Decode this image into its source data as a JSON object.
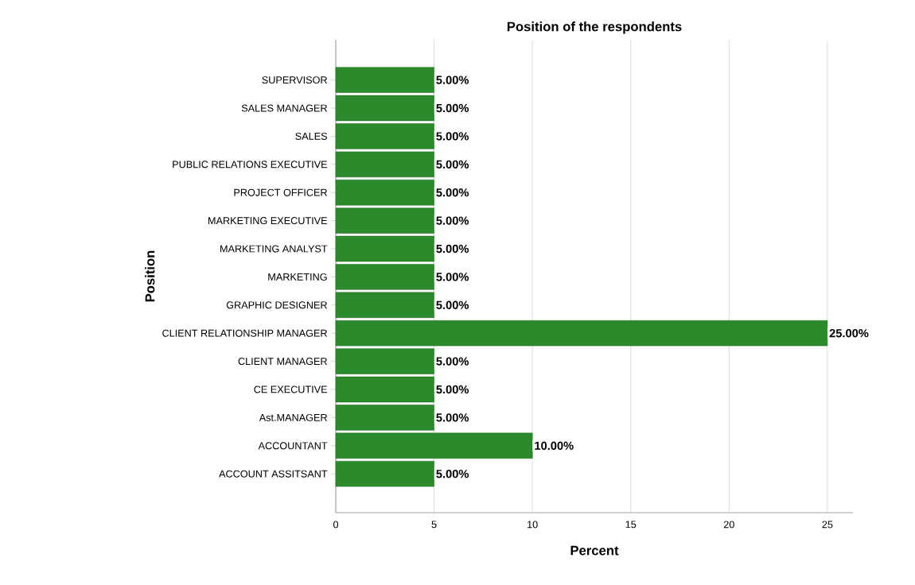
{
  "chart_data": {
    "type": "bar",
    "orientation": "horizontal",
    "title": "Position of the respondents",
    "xlabel": "Percent",
    "ylabel": "Position",
    "categories": [
      "SUPERVISOR",
      "SALES MANAGER",
      "SALES",
      "PUBLIC RELATIONS EXECUTIVE",
      "PROJECT OFFICER",
      "MARKETING EXECUTIVE",
      "MARKETING ANALYST",
      "MARKETING",
      "GRAPHIC DESIGNER",
      "CLIENT RELATIONSHIP MANAGER",
      "CLIENT MANAGER",
      "CE EXECUTIVE",
      "Ast.MANAGER",
      "ACCOUNTANT",
      "ACCOUNT ASSITSANT"
    ],
    "values": [
      5,
      5,
      5,
      5,
      5,
      5,
      5,
      5,
      5,
      25,
      5,
      5,
      5,
      10,
      5
    ],
    "value_labels": [
      "5.00%",
      "5.00%",
      "5.00%",
      "5.00%",
      "5.00%",
      "5.00%",
      "5.00%",
      "5.00%",
      "5.00%",
      "25.00%",
      "5.00%",
      "5.00%",
      "5.00%",
      "10.00%",
      "5.00%"
    ],
    "color": "#2b8a2b",
    "xlim": [
      0,
      26.3
    ],
    "xticks": [
      0,
      5,
      10,
      15,
      20,
      25
    ],
    "grid": "x"
  }
}
